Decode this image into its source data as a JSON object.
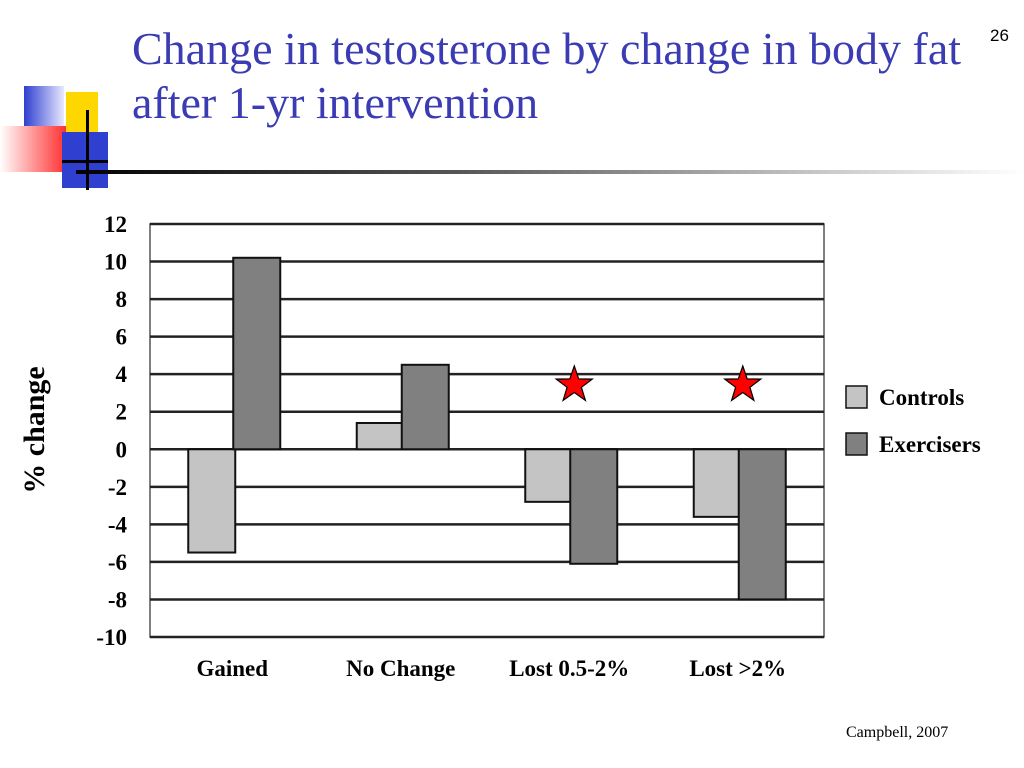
{
  "slide": {
    "title": "Change in testosterone by change in body fat after 1-yr intervention",
    "number": "26",
    "citation": "Campbell, 2007"
  },
  "colors": {
    "title": "#3b3bb3",
    "controls": "#c4c4c4",
    "exercisers": "#808080",
    "star": "#ff0000",
    "deco_blue": "#2f3fd0",
    "deco_yellow": "#ffd700",
    "deco_red": "#ff3030"
  },
  "chart_data": {
    "type": "bar",
    "title": "",
    "xlabel": "",
    "ylabel": "% change",
    "ylim": [
      -10,
      12
    ],
    "yticks": [
      "12",
      "10",
      "8",
      "6",
      "4",
      "2",
      "0",
      "-2",
      "-4",
      "-6",
      "-8",
      "-10"
    ],
    "grid": true,
    "legend_position": "right",
    "categories": [
      "Gained",
      "No Change",
      "Lost 0.5-2%",
      "Lost >2%"
    ],
    "series": [
      {
        "name": "Controls",
        "values": [
          -5.5,
          1.4,
          -2.8,
          -3.6
        ]
      },
      {
        "name": "Exercisers",
        "values": [
          10.2,
          4.5,
          -6.1,
          -8.0
        ]
      }
    ],
    "annotations": [
      {
        "category": "Lost 0.5-2%",
        "symbol": "star",
        "meaning": "significant"
      },
      {
        "category": "Lost >2%",
        "symbol": "star",
        "meaning": "significant"
      }
    ]
  }
}
